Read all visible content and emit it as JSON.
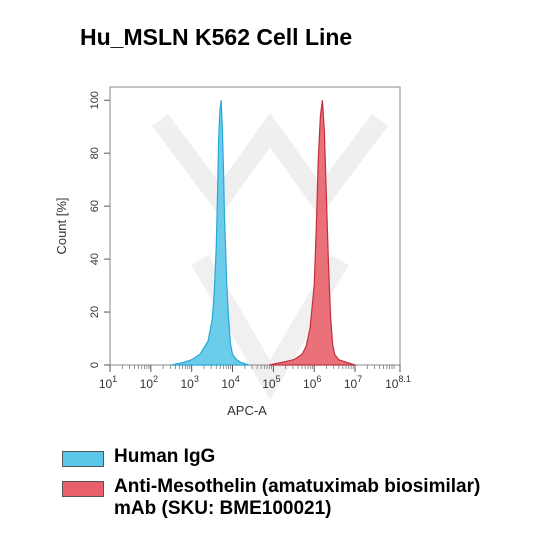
{
  "chart_data": {
    "type": "area",
    "title": "Hu_MSLN K562 Cell Line",
    "xlabel": "APC-A",
    "ylabel": "Count [%]",
    "xscale": "log",
    "xlim": [
      1,
      8.1
    ],
    "ylim": [
      0,
      105
    ],
    "yticks": [
      0,
      20,
      40,
      60,
      80,
      100
    ],
    "xticks": [
      {
        "base": "10",
        "exp": "1",
        "value": 1
      },
      {
        "base": "10",
        "exp": "2",
        "value": 2
      },
      {
        "base": "10",
        "exp": "3",
        "value": 3
      },
      {
        "base": "10",
        "exp": "4",
        "value": 4
      },
      {
        "base": "10",
        "exp": "5",
        "value": 5
      },
      {
        "base": "10",
        "exp": "6",
        "value": 6
      },
      {
        "base": "10",
        "exp": "7",
        "value": 7
      },
      {
        "base": "10",
        "exp": "8.1",
        "value": 8.1
      }
    ],
    "series": [
      {
        "name": "Human IgG",
        "color": "#5bc8e8",
        "stroke": "#2aa8d8",
        "x": [
          2.5,
          2.8,
          3.0,
          3.2,
          3.4,
          3.5,
          3.55,
          3.6,
          3.63,
          3.66,
          3.69,
          3.72,
          3.75,
          3.78,
          3.8,
          3.83,
          3.86,
          3.9,
          3.95,
          4.0,
          4.1,
          4.2,
          4.4
        ],
        "y": [
          0,
          1,
          2,
          4,
          9,
          17,
          27,
          44,
          62,
          85,
          96,
          100,
          90,
          74,
          57,
          44,
          30,
          18,
          8,
          4,
          2,
          1,
          0
        ]
      },
      {
        "name": "Anti-Mesothelin (amatuximab biosimilar) mAb (SKU: BME100021)",
        "color": "#e8606c",
        "stroke": "#c0303c",
        "x": [
          4.9,
          5.2,
          5.5,
          5.7,
          5.8,
          5.9,
          6.0,
          6.05,
          6.1,
          6.15,
          6.2,
          6.25,
          6.3,
          6.35,
          6.4,
          6.45,
          6.5,
          6.6,
          6.8,
          7.0
        ],
        "y": [
          0,
          1,
          2,
          4,
          7,
          14,
          30,
          52,
          78,
          94,
          100,
          88,
          62,
          38,
          18,
          8,
          4,
          2,
          1,
          0
        ]
      }
    ],
    "legend": "bottom"
  }
}
